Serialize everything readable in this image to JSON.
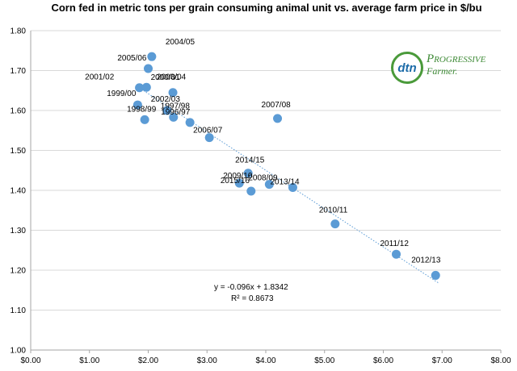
{
  "chart_data": {
    "type": "scatter",
    "title": "Corn fed in metric tons per grain consuming animal unit vs. average farm price in $/bu",
    "xlim": [
      0,
      8
    ],
    "ylim": [
      1.0,
      1.8
    ],
    "x_ticks": [
      "$0.00",
      "$1.00",
      "$2.00",
      "$3.00",
      "$4.00",
      "$5.00",
      "$6.00",
      "$7.00",
      "$8.00"
    ],
    "y_ticks": [
      "1.00",
      "1.10",
      "1.20",
      "1.30",
      "1.40",
      "1.50",
      "1.60",
      "1.70",
      "1.80"
    ],
    "grid": "horizontal",
    "points": [
      {
        "label": "2004/05",
        "x": 2.06,
        "y": 1.735
      },
      {
        "label": "2005/06",
        "x": 2.0,
        "y": 1.705
      },
      {
        "label": "2000/01",
        "x": 1.85,
        "y": 1.657
      },
      {
        "label": "2001/02",
        "x": 1.97,
        "y": 1.658
      },
      {
        "label": "1999/00",
        "x": 1.82,
        "y": 1.614
      },
      {
        "label": "2003/04",
        "x": 2.42,
        "y": 1.645
      },
      {
        "label": "2002/03",
        "x": 2.32,
        "y": 1.6
      },
      {
        "label": "1997/98",
        "x": 2.43,
        "y": 1.583
      },
      {
        "label": "1998/99",
        "x": 1.94,
        "y": 1.577
      },
      {
        "label": "1996/97",
        "x": 2.71,
        "y": 1.57
      },
      {
        "label": "2007/08",
        "x": 4.2,
        "y": 1.58
      },
      {
        "label": "2006/07",
        "x": 3.04,
        "y": 1.532
      },
      {
        "label": "2014/15",
        "x": 3.7,
        "y": 1.443
      },
      {
        "label": "2009/10",
        "x": 3.55,
        "y": 1.418
      },
      {
        "label": "2008/09",
        "x": 4.06,
        "y": 1.415
      },
      {
        "label": "2015/16",
        "x": 3.75,
        "y": 1.398
      },
      {
        "label": "2013/14",
        "x": 4.46,
        "y": 1.407
      },
      {
        "label": "2010/11",
        "x": 5.18,
        "y": 1.316
      },
      {
        "label": "2011/12",
        "x": 6.22,
        "y": 1.24
      },
      {
        "label": "2012/13",
        "x": 6.89,
        "y": 1.187
      }
    ],
    "trendline": {
      "slope": -0.096,
      "intercept": 1.8342,
      "x_range": [
        1.8,
        6.95
      ]
    },
    "equation": "y = -0.096x + 1.8342",
    "r_squared": "R² = 0.8673",
    "marker_color": "#5b9bd5",
    "trend_color": "#5b9bd5"
  },
  "logo": {
    "mark": "dtn",
    "line1": "Progressive",
    "line2": "Farmer."
  }
}
